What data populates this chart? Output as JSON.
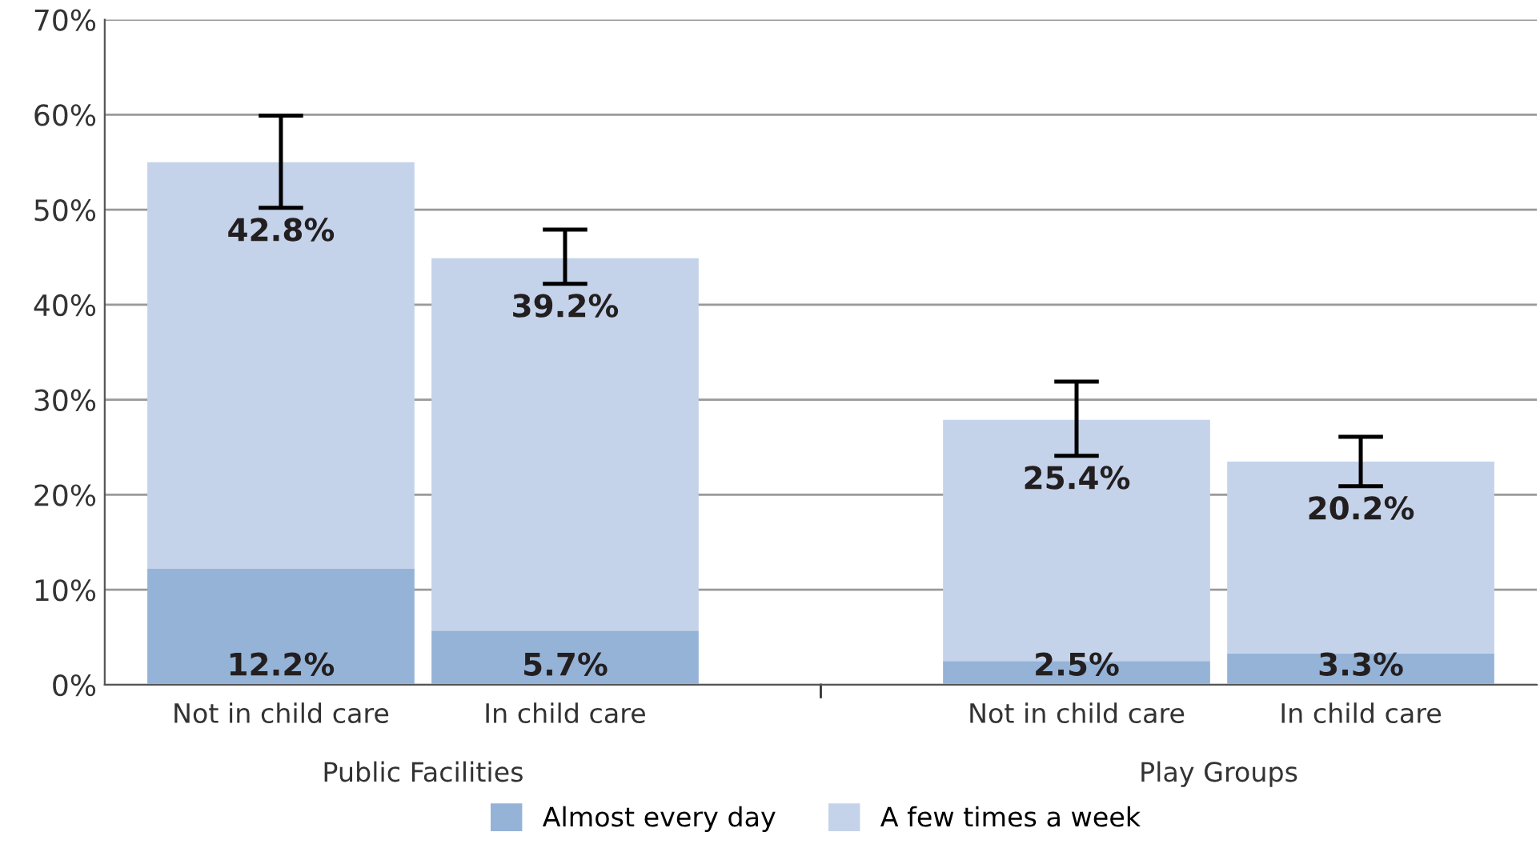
{
  "chart_data": {
    "type": "bar",
    "stacked": true,
    "categories": [
      "Not in child care",
      "In child care",
      "Not in child care",
      "In child care"
    ],
    "series": [
      {
        "name": "Almost every day",
        "color": "#95b3d7",
        "values": [
          12.2,
          5.7,
          2.5,
          3.3
        ],
        "value_labels": [
          "12.2%",
          "5.7%",
          "2.5%",
          "3.3%"
        ]
      },
      {
        "name": "A few times a week",
        "color": "#c5d3ea",
        "values": [
          42.8,
          39.2,
          25.4,
          20.2
        ],
        "value_labels": [
          "42.8%",
          "39.2%",
          "25.4%",
          "20.2%"
        ],
        "errors": [
          [
            50.2,
            59.9
          ],
          [
            42.2,
            47.9
          ],
          [
            24.1,
            31.9
          ],
          [
            20.9,
            26.1
          ]
        ]
      }
    ],
    "annotations": [
      "Public Facilities",
      "Play Groups"
    ],
    "ylim": [
      0,
      70
    ],
    "yticks": [
      {
        "value": 0,
        "label": "0%"
      },
      {
        "value": 10,
        "label": "10%"
      },
      {
        "value": 20,
        "label": "20%"
      },
      {
        "value": 30,
        "label": "30%"
      },
      {
        "value": 40,
        "label": "40%"
      },
      {
        "value": 50,
        "label": "50%"
      },
      {
        "value": 60,
        "label": "60%"
      },
      {
        "value": 70,
        "label": "70%"
      }
    ],
    "grid": "y",
    "legend": "bottom"
  }
}
